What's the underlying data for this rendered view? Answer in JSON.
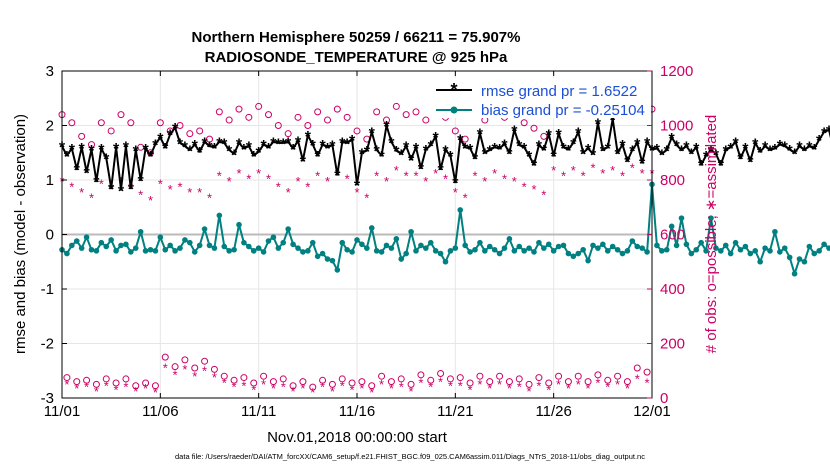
{
  "title_line1": "Northern Hemisphere 50259 / 66211 = 75.907%",
  "title_line2": "RADIOSONDE_TEMPERATURE @ 925 hPa",
  "footer": "data file: /Users/raeder/DAI/ATM_forcXX/CAM6_setup/f.e21.FHIST_BGC.f09_025.CAM6assim.011/Diags_NTrS_2018-11/obs_diag_output.nc",
  "colors": {
    "rmse": "#000000",
    "bias": "#008080",
    "obs": "#cc0066",
    "zero": "#bbbbbb"
  },
  "chart_data": {
    "type": "line",
    "xlabel": "Nov.01,2018 00:00:00 start",
    "ylabel": "rmse and bias (model - observation)",
    "y2label": "# of obs: o=possible; ∗=assimilated",
    "xlim": [
      0,
      30
    ],
    "ylim": [
      -3,
      3
    ],
    "y2lim": [
      0,
      1200
    ],
    "xticks": [
      0,
      5,
      10,
      15,
      20,
      25,
      30
    ],
    "xtick_labels": [
      "11/01",
      "11/06",
      "11/11",
      "11/16",
      "11/21",
      "11/26",
      "12/01"
    ],
    "yticks": [
      -3,
      -2,
      -1,
      0,
      1,
      2,
      3
    ],
    "ytick_labels": [
      "-3",
      "-2",
      "-1",
      "0",
      "1",
      "2",
      "3"
    ],
    "y2ticks": [
      0,
      200,
      400,
      600,
      800,
      1000,
      1200
    ],
    "y2tick_labels": [
      "0",
      "200",
      "400",
      "600",
      "800",
      "1000",
      "1200"
    ],
    "legend": {
      "location": "top-right",
      "entries": [
        "rmse grand pr = 1.6522",
        "bias grand pr = -0.25104"
      ]
    },
    "time_step_days": 0.25,
    "series": [
      {
        "name": "rmse",
        "marker": "asterisk",
        "values": [
          1.62,
          1.45,
          1.58,
          1.2,
          1.6,
          1.15,
          1.56,
          0.98,
          1.58,
          1.4,
          0.85,
          1.6,
          0.82,
          1.62,
          0.85,
          1.55,
          1.0,
          1.58,
          1.45,
          1.66,
          1.78,
          1.6,
          1.84,
          1.96,
          1.68,
          1.62,
          1.55,
          1.65,
          1.52,
          1.7,
          1.62,
          1.6,
          1.7,
          1.68,
          1.55,
          1.48,
          1.68,
          1.58,
          1.62,
          1.45,
          1.52,
          1.65,
          1.6,
          1.7,
          1.68,
          1.68,
          1.7,
          1.58,
          1.72,
          1.36,
          1.82,
          1.65,
          1.45,
          1.65,
          1.6,
          1.64,
          1.1,
          1.7,
          1.68,
          1.74,
          0.92,
          1.5,
          1.54,
          1.88,
          1.55,
          1.45,
          2.0,
          1.7,
          1.54,
          1.48,
          1.62,
          1.38,
          1.6,
          1.22,
          1.56,
          1.64,
          1.8,
          1.2,
          1.55,
          1.45,
          0.96,
          1.75,
          1.6,
          1.58,
          1.4,
          1.86,
          1.5,
          1.55,
          1.6,
          1.58,
          1.66,
          1.5,
          1.92,
          1.64,
          1.6,
          1.45,
          1.28,
          1.64,
          1.56,
          1.84,
          1.45,
          1.85,
          1.6,
          1.56,
          1.68,
          1.88,
          1.5,
          1.58,
          1.48,
          2.05,
          1.55,
          1.6,
          2.12,
          1.5,
          1.65,
          1.35,
          1.55,
          1.68,
          1.32,
          1.7,
          1.56,
          1.58,
          1.48,
          1.55,
          1.78,
          1.64,
          1.55,
          1.62,
          1.5,
          1.6,
          1.28,
          1.45,
          1.55,
          1.48,
          1.28,
          1.55,
          1.6,
          1.7,
          1.4,
          1.6,
          1.35,
          1.68,
          1.52,
          1.62,
          1.55,
          1.58,
          1.65,
          1.62,
          1.56,
          1.5,
          1.62,
          1.55,
          1.62,
          1.58,
          1.74,
          1.88,
          1.92,
          1.55,
          1.7,
          1.05,
          1.58,
          1.52,
          1.65,
          1.58,
          1.5,
          1.55,
          1.65,
          1.58,
          1.6,
          1.55,
          1.64,
          1.6,
          1.42,
          1.62,
          1.55,
          1.58,
          1.56,
          1.62,
          1.5,
          1.57,
          1.6,
          1.48,
          1.58,
          1.55,
          1.72,
          1.4,
          1.88,
          2.72,
          1.6,
          1.7,
          1.56,
          1.52
        ]
      },
      {
        "name": "bias",
        "marker": "dot",
        "values": [
          -0.28,
          -0.35,
          -0.2,
          -0.12,
          -0.25,
          -0.05,
          -0.28,
          -0.3,
          -0.15,
          -0.22,
          -0.1,
          -0.3,
          -0.2,
          -0.18,
          -0.32,
          -0.25,
          0.05,
          -0.3,
          -0.28,
          -0.3,
          -0.05,
          -0.28,
          -0.2,
          -0.3,
          -0.25,
          -0.1,
          -0.15,
          -0.32,
          -0.2,
          0.1,
          -0.2,
          -0.25,
          0.35,
          -0.22,
          -0.3,
          -0.28,
          0.18,
          -0.15,
          -0.22,
          -0.3,
          -0.25,
          -0.32,
          -0.12,
          -0.05,
          -0.25,
          -0.15,
          0.1,
          -0.18,
          -0.25,
          -0.32,
          -0.3,
          -0.15,
          -0.4,
          -0.35,
          -0.45,
          -0.48,
          -0.65,
          -0.15,
          -0.28,
          -0.32,
          -0.1,
          -0.18,
          -0.25,
          0.12,
          -0.3,
          -0.32,
          -0.2,
          -0.25,
          -0.08,
          -0.45,
          -0.35,
          0.05,
          -0.3,
          -0.2,
          -0.25,
          -0.15,
          -0.3,
          -0.35,
          -0.5,
          -0.3,
          -0.25,
          0.45,
          -0.2,
          -0.32,
          -0.28,
          -0.15,
          -0.3,
          -0.22,
          -0.28,
          -0.35,
          -0.25,
          -0.08,
          -0.3,
          -0.22,
          -0.3,
          -0.25,
          -0.32,
          -0.15,
          -0.25,
          -0.18,
          -0.3,
          -0.22,
          -0.2,
          -0.35,
          -0.4,
          -0.35,
          -0.28,
          -0.48,
          -0.2,
          -0.25,
          -0.18,
          -0.3,
          -0.22,
          -0.28,
          -0.35,
          -0.3,
          -0.12,
          -0.22,
          -0.25,
          -0.32,
          0.92,
          -0.2,
          -0.3,
          -0.28,
          0.15,
          -0.2,
          0.3,
          -0.18,
          -0.35,
          -0.28,
          -0.15,
          -0.3,
          0.3,
          -0.25,
          -0.3,
          -0.2,
          -0.35,
          -0.15,
          -0.28,
          -0.22,
          -0.35,
          -0.3,
          -0.5,
          -0.25,
          -0.3,
          0.05,
          -0.32,
          -0.25,
          -0.42,
          -0.72,
          -0.45,
          -0.5,
          -0.22,
          -0.35,
          -0.3,
          -0.18,
          -0.25,
          -0.3,
          -0.22,
          -0.12,
          -0.35,
          -0.3,
          -0.25,
          -0.2,
          -0.32,
          0.05,
          -0.3,
          -0.25,
          -0.35,
          -0.28,
          -0.15,
          -0.3,
          -0.48,
          -0.25,
          -0.5,
          -0.42,
          -0.35,
          -0.3,
          -0.15,
          -0.25,
          -0.32,
          -0.45,
          -0.4,
          -0.2,
          -0.35,
          -0.25,
          -0.28,
          -0.2,
          -0.15,
          -0.3,
          -0.35,
          -0.22,
          0.05,
          -0.3,
          -0.55,
          -0.32,
          -0.1,
          -0.25,
          -0.62,
          -0.3,
          -0.1,
          -0.22,
          -0.25
        ]
      },
      {
        "name": "obs_possible_00Z",
        "axis": "right",
        "marker": "circle",
        "values": [
          1040,
          960,
          1010,
          1040,
          920,
          1010,
          1000,
          980,
          1050,
          1060,
          1070,
          1000,
          1030,
          1050,
          1060,
          980,
          1050,
          1070,
          1050,
          1060,
          980,
          1050,
          1060,
          1040,
          990,
          1070,
          1070,
          1080,
          1070,
          1080,
          1060
        ]
      },
      {
        "name": "obs_possible_12Z",
        "axis": "right",
        "marker": "circle",
        "values": [
          1010,
          930,
          980,
          1010,
          900,
          980,
          970,
          950,
          1020,
          1030,
          1040,
          970,
          1000,
          1020,
          1030,
          950,
          1020,
          1040,
          1020,
          1030,
          950,
          1020,
          1030,
          1010,
          960,
          1040,
          1040,
          1050,
          1040,
          1050,
          1030
        ]
      },
      {
        "name": "obs_assimilated_00Z",
        "axis": "right",
        "marker": "asterisk",
        "values": [
          800,
          760,
          790,
          800,
          750,
          790,
          780,
          760,
          820,
          830,
          830,
          780,
          800,
          820,
          830,
          760,
          820,
          840,
          820,
          830,
          760,
          820,
          830,
          800,
          770,
          840,
          840,
          850,
          840,
          850,
          830
        ]
      },
      {
        "name": "obs_assimilated_12Z",
        "axis": "right",
        "marker": "asterisk",
        "values": [
          780,
          740,
          770,
          780,
          730,
          770,
          760,
          740,
          800,
          810,
          810,
          760,
          780,
          800,
          810,
          740,
          800,
          820,
          800,
          810,
          740,
          800,
          810,
          780,
          750,
          820,
          820,
          830,
          820,
          830,
          810
        ]
      },
      {
        "name": "obs_possible_06Z",
        "axis": "right",
        "marker": "circle",
        "values": [
          75,
          65,
          70,
          70,
          55,
          150,
          140,
          135,
          80,
          75,
          80,
          70,
          60,
          65,
          70,
          60,
          80,
          70,
          85,
          90,
          75,
          80,
          80,
          70,
          75,
          80,
          80,
          85,
          80,
          110,
          100
        ]
      },
      {
        "name": "obs_possible_18Z",
        "axis": "right",
        "marker": "circle",
        "values": [
          60,
          50,
          55,
          45,
          45,
          115,
          110,
          105,
          65,
          55,
          60,
          45,
          40,
          50,
          55,
          45,
          60,
          50,
          65,
          70,
          55,
          60,
          60,
          50,
          55,
          60,
          60,
          65,
          60,
          95,
          80
        ]
      },
      {
        "name": "obs_assimilated_06Z",
        "axis": "right",
        "marker": "asterisk",
        "values": [
          55,
          45,
          50,
          45,
          40,
          115,
          110,
          105,
          60,
          50,
          55,
          45,
          40,
          45,
          50,
          40,
          55,
          45,
          60,
          65,
          50,
          55,
          55,
          45,
          50,
          55,
          55,
          60,
          55,
          75,
          70
        ]
      },
      {
        "name": "obs_assimilated_18Z",
        "axis": "right",
        "marker": "asterisk",
        "values": [
          40,
          30,
          35,
          30,
          25,
          90,
          85,
          80,
          45,
          35,
          40,
          30,
          25,
          30,
          35,
          25,
          40,
          30,
          45,
          50,
          35,
          40,
          40,
          30,
          35,
          40,
          40,
          45,
          40,
          60,
          55
        ]
      }
    ]
  }
}
